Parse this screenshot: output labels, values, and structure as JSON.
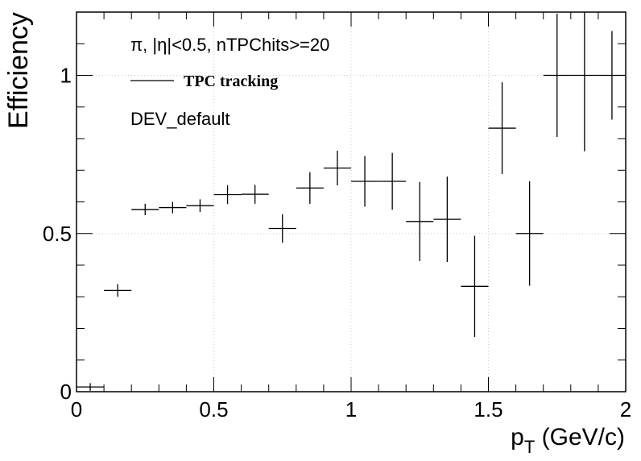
{
  "chart_data": {
    "type": "scatter",
    "xlabel": "p",
    "xlabel_sub": "T",
    "xlabel_suffix": " (GeV/c)",
    "ylabel": "Efficiency",
    "xlim": [
      0,
      2
    ],
    "ylim": [
      0,
      1.2
    ],
    "grid": true,
    "x_ticks": [
      0,
      0.5,
      1,
      1.5,
      2
    ],
    "x_tick_labels": [
      "0",
      "0.5",
      "1",
      "1.5",
      "2"
    ],
    "y_ticks": [
      0,
      0.5,
      1
    ],
    "y_tick_labels": [
      "0",
      "0.5",
      "1"
    ],
    "annotations": [
      "π, |η|<0.5, nTPChits>=20",
      "DEV_default"
    ],
    "legend": {
      "placement": "top-left",
      "entries": [
        "TPC tracking"
      ]
    },
    "series": [
      {
        "name": "TPC tracking",
        "x": [
          0.05,
          0.15,
          0.25,
          0.35,
          0.45,
          0.55,
          0.65,
          0.75,
          0.85,
          0.95,
          1.05,
          1.15,
          1.25,
          1.35,
          1.45,
          1.55,
          1.65,
          1.75,
          1.85,
          1.95
        ],
        "xerr": [
          0.05,
          0.05,
          0.05,
          0.05,
          0.05,
          0.05,
          0.05,
          0.05,
          0.05,
          0.05,
          0.05,
          0.05,
          0.05,
          0.05,
          0.05,
          0.05,
          0.05,
          0.05,
          0.05,
          0.05
        ],
        "y": [
          0.015,
          0.32,
          0.576,
          0.582,
          0.588,
          0.623,
          0.624,
          0.516,
          0.644,
          0.707,
          0.665,
          0.665,
          0.538,
          0.545,
          0.333,
          0.833,
          0.5,
          1.0,
          1.0,
          1.0
        ],
        "yerr": [
          0.012,
          0.02,
          0.018,
          0.018,
          0.02,
          0.03,
          0.03,
          0.045,
          0.05,
          0.055,
          0.08,
          0.09,
          0.125,
          0.135,
          0.16,
          0.145,
          0.165,
          0.195,
          0.24,
          0.14
        ]
      }
    ]
  }
}
